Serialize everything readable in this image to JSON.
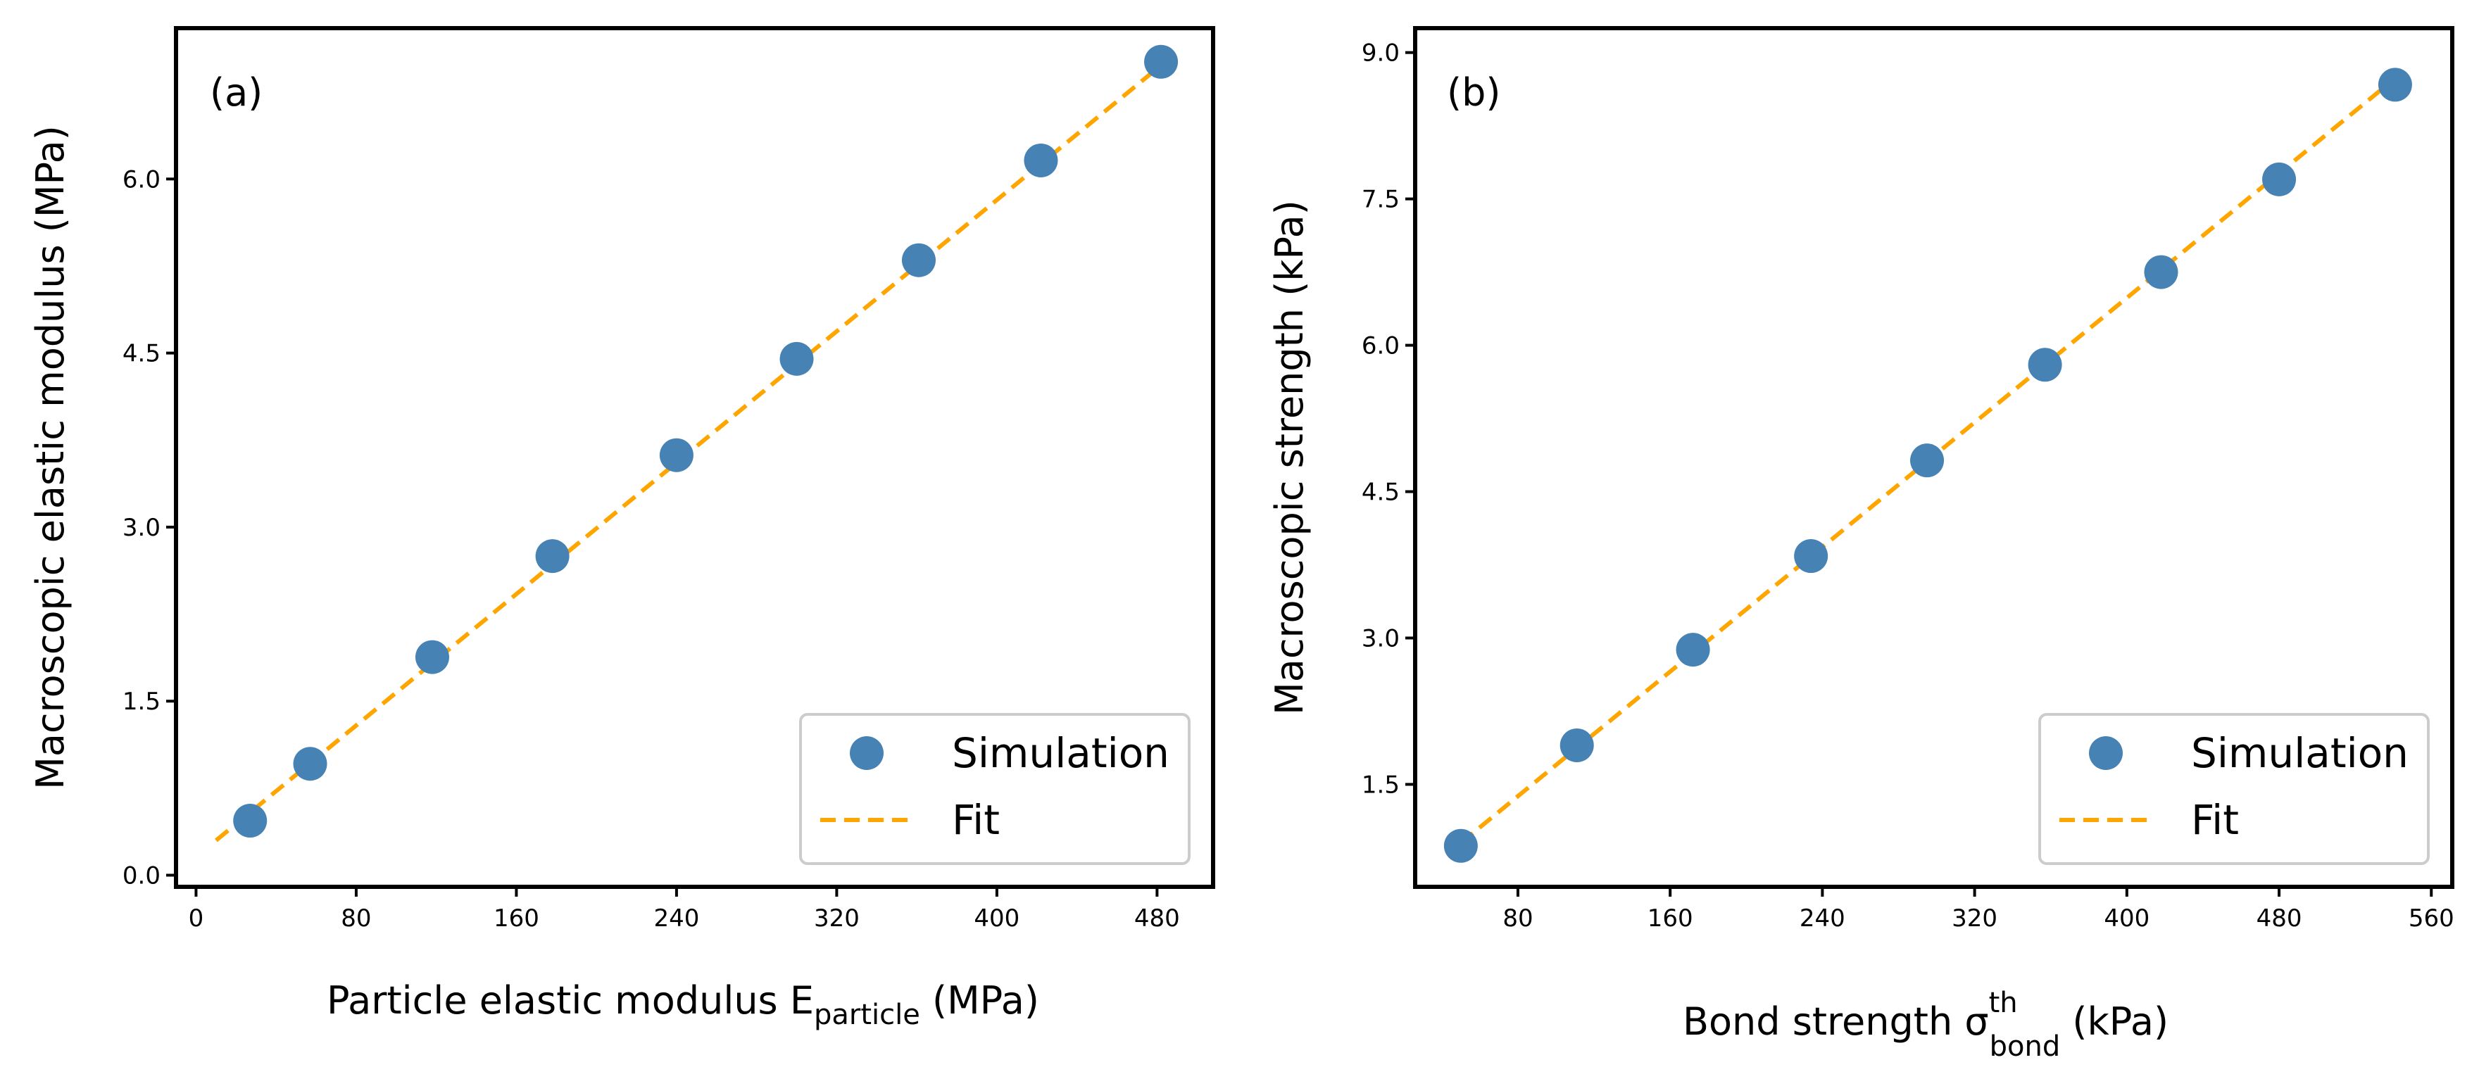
{
  "chart_data": [
    {
      "panel": "(a)",
      "type": "scatter",
      "xlabel": {
        "main": "Particle elastic modulus E",
        "sub": "particle",
        "unit": " (MPa)"
      },
      "ylabel": "Macroscopic elastic modulus (MPa)",
      "xlim": [
        -10,
        508
      ],
      "ylim": [
        -0.1,
        7.3
      ],
      "xticks": [
        0,
        80,
        160,
        240,
        320,
        400,
        480
      ],
      "yticks": [
        0.0,
        1.5,
        3.0,
        4.5,
        6.0
      ],
      "xtick_labels": [
        "0",
        "80",
        "160",
        "240",
        "320",
        "400",
        "480"
      ],
      "ytick_labels": [
        "0.0",
        "1.5",
        "3.0",
        "4.5",
        "6.0"
      ],
      "grid": false,
      "legend_position": "bottom-right",
      "series": [
        {
          "name": "Simulation",
          "kind": "scatter",
          "color": "#4682B4",
          "x": [
            27,
            57,
            118,
            178,
            240,
            300,
            361,
            422,
            482
          ],
          "y": [
            0.47,
            0.96,
            1.88,
            2.75,
            3.62,
            4.45,
            5.3,
            6.16,
            7.01
          ]
        },
        {
          "name": "Fit",
          "kind": "line",
          "style": "dashed",
          "color": "#FFA500",
          "x": [
            10,
            482
          ],
          "y": [
            0.3,
            6.98
          ]
        }
      ]
    },
    {
      "panel": "(b)",
      "type": "scatter",
      "xlabel": {
        "main": "Bond strength σ",
        "sup": "th",
        "sub": "bond",
        "unit": " (kPa)"
      },
      "ylabel": "Macroscopic strength (kPa)",
      "xlim": [
        26,
        571
      ],
      "ylim": [
        0.45,
        9.25
      ],
      "xticks": [
        80,
        160,
        240,
        320,
        400,
        480,
        560
      ],
      "yticks": [
        1.5,
        3.0,
        4.5,
        6.0,
        7.5,
        9.0
      ],
      "xtick_labels": [
        "80",
        "160",
        "240",
        "320",
        "400",
        "480",
        "560"
      ],
      "ytick_labels": [
        "1.5",
        "3.0",
        "4.5",
        "6.0",
        "7.5",
        "9.0"
      ],
      "grid": false,
      "legend_position": "bottom-right",
      "series": [
        {
          "name": "Simulation",
          "kind": "scatter",
          "color": "#4682B4",
          "x": [
            50,
            111,
            172,
            234,
            295,
            357,
            418,
            480,
            541
          ],
          "y": [
            0.87,
            1.9,
            2.88,
            3.84,
            4.82,
            5.8,
            6.75,
            7.7,
            8.67
          ]
        },
        {
          "name": "Fit",
          "kind": "line",
          "style": "dashed",
          "color": "#FFA500",
          "x": [
            50,
            545
          ],
          "y": [
            0.9,
            8.8
          ]
        }
      ]
    }
  ]
}
